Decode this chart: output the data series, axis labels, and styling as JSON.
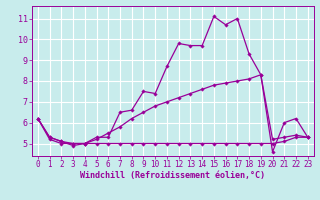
{
  "title": "",
  "xlabel": "Windchill (Refroidissement éolien,°C)",
  "ylabel": "",
  "background_color": "#c8ecec",
  "grid_color": "#ffffff",
  "line_color": "#990099",
  "marker": "D",
  "marker_size": 1.8,
  "line_width": 0.9,
  "x_ticks": [
    0,
    1,
    2,
    3,
    4,
    5,
    6,
    7,
    8,
    9,
    10,
    11,
    12,
    13,
    14,
    15,
    16,
    17,
    18,
    19,
    20,
    21,
    22,
    23
  ],
  "y_ticks": [
    5,
    6,
    7,
    8,
    9,
    10,
    11
  ],
  "xlim": [
    -0.5,
    23.5
  ],
  "ylim": [
    4.4,
    11.6
  ],
  "series1_x": [
    0,
    1,
    2,
    3,
    4,
    5,
    6,
    7,
    8,
    9,
    10,
    11,
    12,
    13,
    14,
    15,
    16,
    17,
    18,
    19,
    20,
    21,
    22,
    23
  ],
  "series1_y": [
    6.2,
    5.3,
    5.1,
    4.9,
    5.0,
    5.3,
    5.3,
    6.5,
    6.6,
    7.5,
    7.4,
    8.7,
    9.8,
    9.7,
    9.7,
    11.1,
    10.7,
    11.0,
    9.3,
    8.3,
    4.6,
    6.0,
    6.2,
    5.3
  ],
  "series2_x": [
    0,
    1,
    2,
    3,
    4,
    5,
    6,
    7,
    8,
    9,
    10,
    11,
    12,
    13,
    14,
    15,
    16,
    17,
    18,
    19,
    20,
    21,
    22,
    23
  ],
  "series2_y": [
    6.2,
    5.3,
    5.1,
    5.0,
    5.0,
    5.2,
    5.5,
    5.8,
    6.2,
    6.5,
    6.8,
    7.0,
    7.2,
    7.4,
    7.6,
    7.8,
    7.9,
    8.0,
    8.1,
    8.3,
    5.2,
    5.3,
    5.4,
    5.3
  ],
  "series3_x": [
    0,
    1,
    2,
    3,
    4,
    5,
    6,
    7,
    8,
    9,
    10,
    11,
    12,
    13,
    14,
    15,
    16,
    17,
    18,
    19,
    20,
    21,
    22,
    23
  ],
  "series3_y": [
    6.2,
    5.2,
    5.0,
    5.0,
    5.0,
    5.0,
    5.0,
    5.0,
    5.0,
    5.0,
    5.0,
    5.0,
    5.0,
    5.0,
    5.0,
    5.0,
    5.0,
    5.0,
    5.0,
    5.0,
    5.0,
    5.1,
    5.3,
    5.3
  ],
  "tick_fontsize": 5.5,
  "xlabel_fontsize": 6.0
}
